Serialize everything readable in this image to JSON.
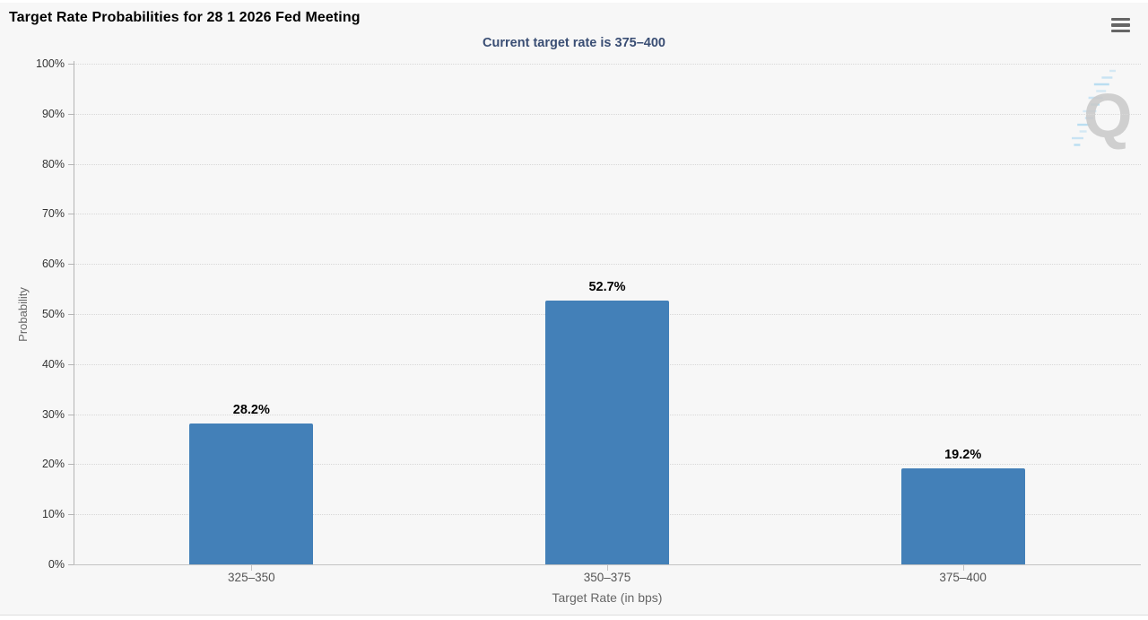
{
  "chart_data": {
    "type": "bar",
    "title": "Target Rate Probabilities for 28 1 2026 Fed Meeting",
    "subtitle": "Current target rate is 375–400",
    "categories": [
      "325–350",
      "350–375",
      "375–400"
    ],
    "values": [
      28.2,
      52.7,
      19.2
    ],
    "value_labels": [
      "28.2%",
      "52.7%",
      "19.2%"
    ],
    "xlabel": "Target Rate (in bps)",
    "ylabel": "Probability",
    "ylim": [
      0,
      100
    ],
    "y_ticks": [
      "0%",
      "10%",
      "20%",
      "30%",
      "40%",
      "50%",
      "60%",
      "70%",
      "80%",
      "90%",
      "100%"
    ],
    "grid": "horizontal-dotted",
    "legend": "none",
    "bar_color": "#4380b8"
  },
  "menu": {
    "icon": "hamburger-icon"
  },
  "watermark": {
    "letter": "Q",
    "letter_color": "#c0c0c0",
    "dash_color": "#a5d5ef"
  }
}
